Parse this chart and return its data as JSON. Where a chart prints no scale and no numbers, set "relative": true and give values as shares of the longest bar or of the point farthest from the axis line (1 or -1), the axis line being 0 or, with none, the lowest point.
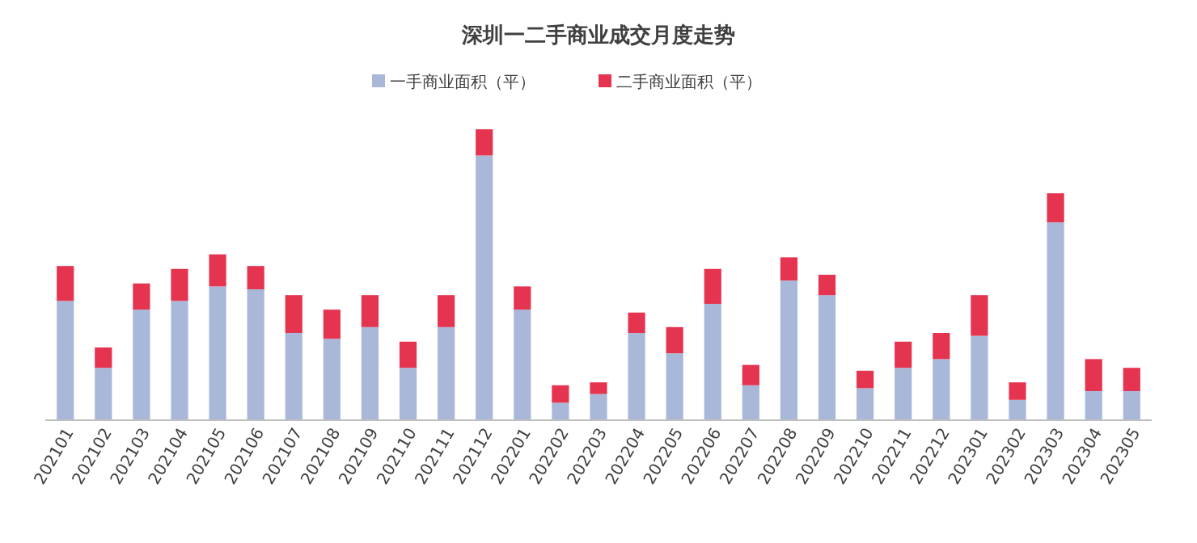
{
  "chart_data": {
    "type": "bar",
    "title": "深圳一二手商业成交月度走势",
    "stacked": true,
    "relative": true,
    "legend": "top",
    "categories": [
      "202101",
      "202102",
      "202103",
      "202104",
      "202105",
      "202106",
      "202107",
      "202108",
      "202109",
      "202110",
      "202111",
      "202112",
      "202201",
      "202202",
      "202203",
      "202204",
      "202205",
      "202206",
      "202207",
      "202208",
      "202209",
      "202210",
      "202211",
      "202212",
      "202301",
      "202302",
      "202303",
      "202304",
      "202305"
    ],
    "series": [
      {
        "name": "一手商业面积（平）",
        "color": "#a9b8d8",
        "values": [
          0.41,
          0.18,
          0.38,
          0.41,
          0.46,
          0.45,
          0.3,
          0.28,
          0.32,
          0.18,
          0.32,
          0.91,
          0.38,
          0.06,
          0.09,
          0.3,
          0.23,
          0.4,
          0.12,
          0.48,
          0.43,
          0.11,
          0.18,
          0.21,
          0.29,
          0.07,
          0.68,
          0.1,
          0.1
        ]
      },
      {
        "name": "二手商业面积（平）",
        "color": "#e5344f",
        "values": [
          0.12,
          0.07,
          0.09,
          0.11,
          0.11,
          0.08,
          0.13,
          0.1,
          0.11,
          0.09,
          0.11,
          0.09,
          0.08,
          0.06,
          0.04,
          0.07,
          0.09,
          0.12,
          0.07,
          0.08,
          0.07,
          0.06,
          0.09,
          0.09,
          0.14,
          0.06,
          0.1,
          0.11,
          0.08
        ]
      }
    ]
  }
}
